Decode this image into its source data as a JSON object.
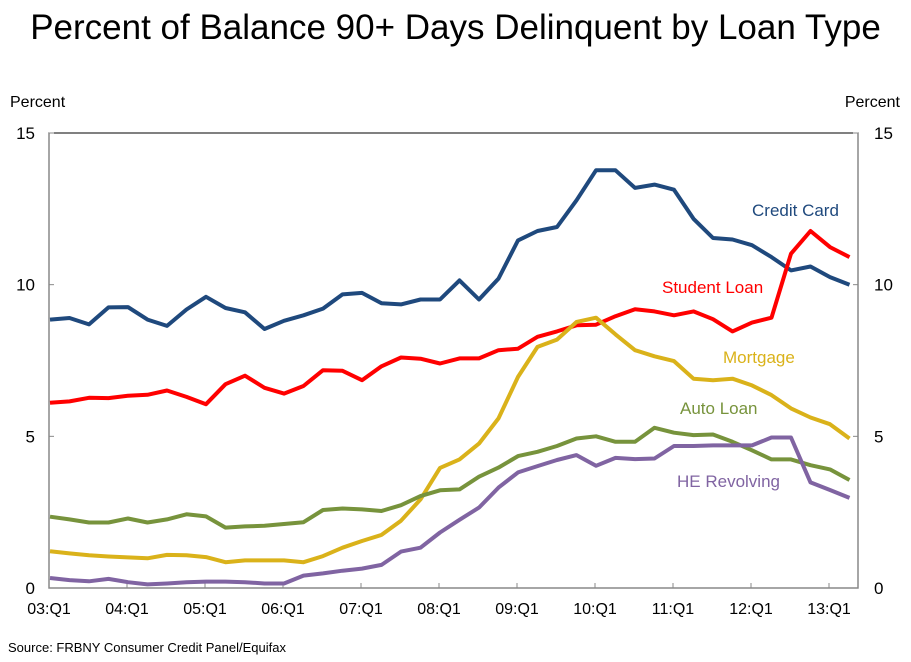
{
  "chart_data": {
    "type": "line",
    "title": "Percent of Balance 90+ Days Delinquent by Loan Type",
    "ylabel_left": "Percent",
    "ylabel_right": "Percent",
    "ylim": [
      0,
      15
    ],
    "yticks": [
      "0",
      "5",
      "10",
      "15"
    ],
    "xtick_labels": [
      "03:Q1",
      "04:Q1",
      "05:Q1",
      "06:Q1",
      "07:Q1",
      "08:Q1",
      "09:Q1",
      "10:Q1",
      "11:Q1",
      "12:Q1",
      "13:Q1"
    ],
    "x_range": [
      "03:Q1",
      "13:Q2"
    ],
    "grid": false,
    "legend": "inline labels",
    "series": [
      {
        "name": "Credit Card",
        "color": "#1F497D",
        "values": [
          8.85,
          8.9,
          8.69,
          9.25,
          9.26,
          8.85,
          8.64,
          9.18,
          9.6,
          9.23,
          9.09,
          8.54,
          8.81,
          8.99,
          9.21,
          9.68,
          9.73,
          9.39,
          9.35,
          9.51,
          9.51,
          10.14,
          9.51,
          10.2,
          11.46,
          11.77,
          11.9,
          12.78,
          13.77,
          13.77,
          13.19,
          13.3,
          13.13,
          12.17,
          11.54,
          11.49,
          11.3,
          10.91,
          10.47,
          10.6,
          10.25,
          10.0
        ]
      },
      {
        "name": "Student Loan",
        "color": "#FF0000",
        "values": [
          6.11,
          6.15,
          6.27,
          6.26,
          6.34,
          6.37,
          6.51,
          6.3,
          6.06,
          6.72,
          7.0,
          6.6,
          6.41,
          6.66,
          7.18,
          7.16,
          6.85,
          7.31,
          7.6,
          7.56,
          7.4,
          7.57,
          7.57,
          7.84,
          7.89,
          8.28,
          8.46,
          8.66,
          8.68,
          8.96,
          9.19,
          9.12,
          8.99,
          9.12,
          8.86,
          8.46,
          8.75,
          8.91,
          11.02,
          11.77,
          11.24,
          10.91
        ]
      },
      {
        "name": "Mortgage",
        "color": "#DAB21A",
        "values": [
          1.21,
          1.14,
          1.08,
          1.04,
          1.01,
          0.98,
          1.09,
          1.08,
          1.02,
          0.85,
          0.91,
          0.91,
          0.91,
          0.85,
          1.05,
          1.33,
          1.55,
          1.75,
          2.22,
          2.92,
          3.96,
          4.24,
          4.76,
          5.59,
          6.96,
          7.95,
          8.19,
          8.77,
          8.91,
          8.36,
          7.84,
          7.64,
          7.48,
          6.9,
          6.85,
          6.9,
          6.68,
          6.36,
          5.92,
          5.62,
          5.4,
          4.93
        ]
      },
      {
        "name": "Auto Loan",
        "color": "#77933C",
        "values": [
          2.35,
          2.26,
          2.16,
          2.16,
          2.29,
          2.16,
          2.26,
          2.43,
          2.36,
          1.99,
          2.03,
          2.05,
          2.11,
          2.17,
          2.57,
          2.62,
          2.59,
          2.54,
          2.73,
          3.03,
          3.22,
          3.25,
          3.67,
          3.97,
          4.35,
          4.49,
          4.68,
          4.93,
          5.0,
          4.82,
          4.82,
          5.28,
          5.12,
          5.04,
          5.06,
          4.82,
          4.54,
          4.24,
          4.24,
          4.05,
          3.91,
          3.56
        ]
      },
      {
        "name": "HE Revolving",
        "color": "#8064A2",
        "values": [
          0.33,
          0.26,
          0.22,
          0.3,
          0.19,
          0.12,
          0.15,
          0.19,
          0.21,
          0.21,
          0.19,
          0.15,
          0.15,
          0.41,
          0.48,
          0.57,
          0.64,
          0.76,
          1.2,
          1.33,
          1.83,
          2.25,
          2.65,
          3.31,
          3.81,
          4.02,
          4.22,
          4.38,
          4.03,
          4.29,
          4.25,
          4.27,
          4.68,
          4.68,
          4.7,
          4.7,
          4.7,
          4.96,
          4.96,
          3.48,
          3.23,
          2.97
        ]
      }
    ]
  },
  "source": "Source: FRBNY Consumer Credit Panel/Equifax"
}
